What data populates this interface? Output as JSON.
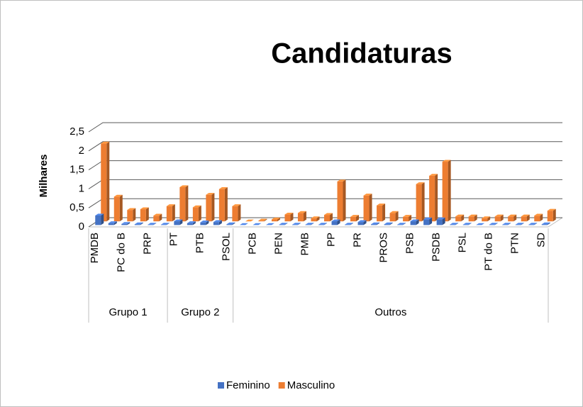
{
  "chart_data": {
    "type": "bar3d",
    "title": "Candidaturas",
    "y_label": "Milhares",
    "category_groups": [
      {
        "label": "Grupo 1",
        "categories": [
          "PMDB",
          null,
          "PC do B",
          null,
          "PRP",
          null
        ]
      },
      {
        "label": "Grupo 2",
        "categories": [
          "PT",
          null,
          "PTB",
          null,
          "PSOL"
        ]
      },
      {
        "label": "Outros",
        "categories": [
          null,
          "PCB",
          null,
          "PEN",
          null,
          "PMB",
          null,
          "PP",
          null,
          "PR",
          null,
          "PROS",
          null,
          "PSB",
          null,
          "PSDB",
          null,
          "PSL",
          null,
          "PT do B",
          null,
          "PTN",
          null,
          "SD"
        ]
      }
    ],
    "series": [
      {
        "name": "Feminino",
        "color": "#4472c4",
        "values": [
          0.25,
          0.05,
          0.03,
          0.02,
          0.01,
          0.01,
          0.1,
          0.05,
          0.07,
          0.08,
          0.02,
          0,
          0,
          0,
          0.01,
          0.01,
          0.01,
          0.01,
          0.1,
          0.01,
          0.08,
          0.02,
          0.02,
          0.01,
          0.1,
          0.15,
          0.15,
          0.01,
          0.01,
          0,
          0.01,
          0.01,
          0.01,
          0.01,
          0.02
        ]
      },
      {
        "name": "Masculino",
        "color": "#ed7d31",
        "values": [
          2.05,
          0.65,
          0.3,
          0.32,
          0.15,
          0.4,
          0.9,
          0.37,
          0.7,
          0.85,
          0.4,
          0,
          0.02,
          0.05,
          0.18,
          0.22,
          0.08,
          0.17,
          1.05,
          0.12,
          0.68,
          0.42,
          0.22,
          0.12,
          0.98,
          1.2,
          1.57,
          0.13,
          0.13,
          0.08,
          0.13,
          0.13,
          0.13,
          0.15,
          0.28
        ]
      }
    ],
    "ylim": [
      0,
      2.5
    ],
    "yticks": [
      0,
      {
        "value": 0.5,
        "label": "0,5"
      },
      1,
      {
        "value": 1.5,
        "label": "1,5"
      },
      2,
      {
        "value": 2.5,
        "label": "2,5"
      }
    ],
    "grid": true,
    "legend": "bottom"
  }
}
